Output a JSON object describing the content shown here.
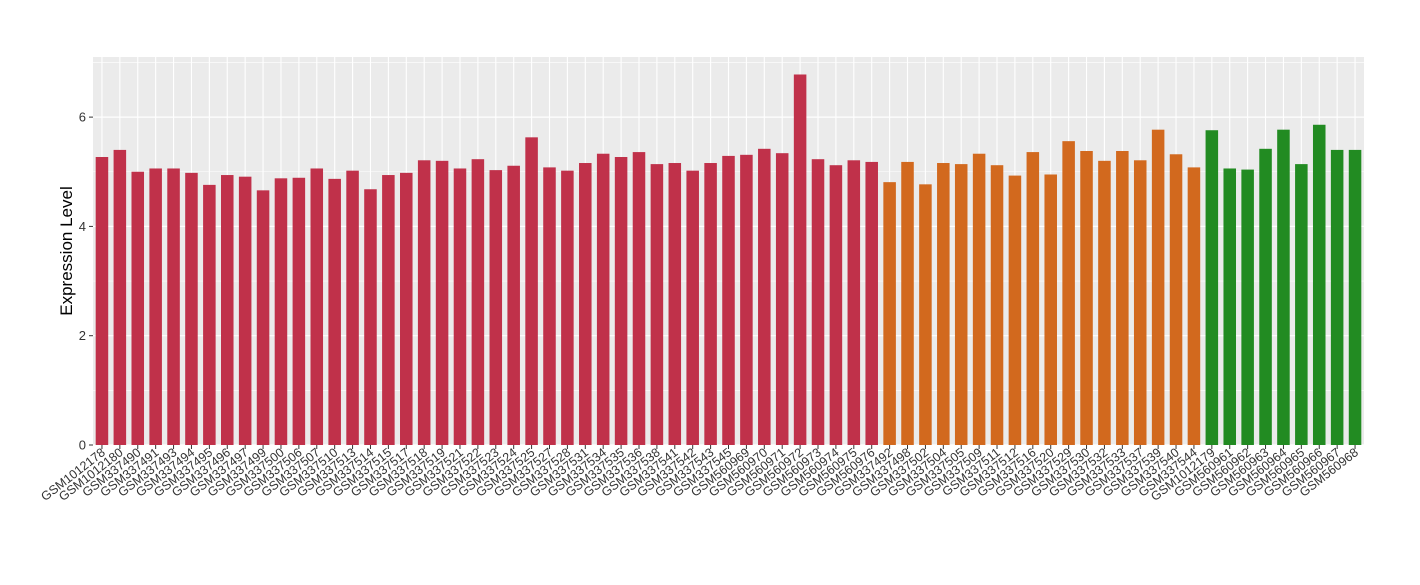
{
  "chart_data": {
    "type": "bar",
    "title": "",
    "xlabel": "",
    "ylabel": "Expression Level",
    "ylim": [
      0,
      7.1
    ],
    "yticks": [
      0,
      2,
      4,
      6
    ],
    "grid": true,
    "legend": "none",
    "colors": {
      "panel_bg": "#EBEBEB",
      "grid": "#FFFFFF",
      "group1": "#C0314A",
      "group2": "#D2691E",
      "group3": "#228B22"
    },
    "categories": [
      "GSM1012178",
      "GSM1012180",
      "GSM337490",
      "GSM337491",
      "GSM337493",
      "GSM337494",
      "GSM337495",
      "GSM337496",
      "GSM337497",
      "GSM337499",
      "GSM337500",
      "GSM337506",
      "GSM337507",
      "GSM337510",
      "GSM337513",
      "GSM337514",
      "GSM337515",
      "GSM337517",
      "GSM337518",
      "GSM337519",
      "GSM337521",
      "GSM337522",
      "GSM337523",
      "GSM337524",
      "GSM337525",
      "GSM337527",
      "GSM337528",
      "GSM337531",
      "GSM337534",
      "GSM337535",
      "GSM337536",
      "GSM337538",
      "GSM337541",
      "GSM337542",
      "GSM337543",
      "GSM337545",
      "GSM560969",
      "GSM560970",
      "GSM560971",
      "GSM560972",
      "GSM560973",
      "GSM560974",
      "GSM560975",
      "GSM560976",
      "GSM337492",
      "GSM337498",
      "GSM337502",
      "GSM337504",
      "GSM337505",
      "GSM337509",
      "GSM337511",
      "GSM337512",
      "GSM337516",
      "GSM337520",
      "GSM337529",
      "GSM337530",
      "GSM337532",
      "GSM337533",
      "GSM337537",
      "GSM337539",
      "GSM337540",
      "GSM337544",
      "GSM1012179",
      "GSM560961",
      "GSM560962",
      "GSM560963",
      "GSM560964",
      "GSM560965",
      "GSM560966",
      "GSM560967",
      "GSM560968"
    ],
    "values": [
      5.27,
      5.4,
      5.0,
      5.06,
      5.06,
      4.98,
      4.76,
      4.94,
      4.91,
      4.66,
      4.88,
      4.89,
      5.06,
      4.87,
      5.02,
      4.68,
      4.94,
      4.98,
      5.21,
      5.2,
      5.06,
      5.23,
      5.03,
      5.11,
      5.63,
      5.08,
      5.02,
      5.16,
      5.33,
      5.27,
      5.36,
      5.14,
      5.16,
      5.02,
      5.16,
      5.29,
      5.31,
      5.42,
      5.34,
      6.78,
      5.23,
      5.12,
      5.21,
      5.18,
      4.81,
      5.18,
      4.77,
      5.16,
      5.14,
      5.33,
      5.12,
      4.93,
      5.36,
      4.95,
      5.56,
      5.38,
      5.2,
      5.38,
      5.21,
      5.77,
      5.32,
      5.08,
      5.76,
      5.06,
      5.04,
      5.42,
      5.77,
      5.14,
      5.86,
      5.4,
      5.4
    ],
    "groups": [
      1,
      1,
      1,
      1,
      1,
      1,
      1,
      1,
      1,
      1,
      1,
      1,
      1,
      1,
      1,
      1,
      1,
      1,
      1,
      1,
      1,
      1,
      1,
      1,
      1,
      1,
      1,
      1,
      1,
      1,
      1,
      1,
      1,
      1,
      1,
      1,
      1,
      1,
      1,
      1,
      1,
      1,
      1,
      1,
      2,
      2,
      2,
      2,
      2,
      2,
      2,
      2,
      2,
      2,
      2,
      2,
      2,
      2,
      2,
      2,
      2,
      2,
      3,
      3,
      3,
      3,
      3,
      3,
      3,
      3,
      3
    ]
  }
}
